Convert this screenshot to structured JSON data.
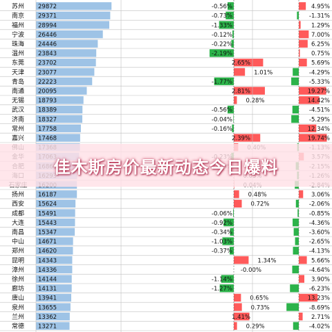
{
  "banner": {
    "title": "佳木斯房价最新动态今日爆料"
  },
  "colors": {
    "bar_blue": "#9ec3e6",
    "pos_red": "#ff5a5a",
    "neg_green": "#2cb34a",
    "grid": "#bfbfbf"
  },
  "chart_data": {
    "type": "table",
    "columns": [
      "city",
      "price",
      "mom_change",
      "yoy_change"
    ],
    "rows": [
      {
        "city": "苏州",
        "price": "29872",
        "mom": "-0.56%",
        "yoy": "4.95%"
      },
      {
        "city": "南京",
        "price": "29371",
        "mom": "-0.73%",
        "yoy": "-1.31%"
      },
      {
        "city": "福州",
        "price": "28994",
        "mom": "-1.33%",
        "yoy": "1.29%"
      },
      {
        "city": "宁波",
        "price": "26446",
        "mom": "-0.12%",
        "yoy": "7.00%"
      },
      {
        "city": "珠海",
        "price": "24446",
        "mom": "-0.22%",
        "yoy": "6.25%"
      },
      {
        "city": "温州",
        "price": "23843",
        "mom": "-2.19%",
        "yoy": "0.75%"
      },
      {
        "city": "东莞",
        "price": "23702",
        "mom": "2.65%",
        "yoy": "5.69%"
      },
      {
        "city": "天津",
        "price": "23077",
        "mom": "1.01%",
        "yoy": "-4.29%"
      },
      {
        "city": "青岛",
        "price": "22223",
        "mom": "-1.77%",
        "yoy": "-5.33%"
      },
      {
        "city": "南通",
        "price": "20095",
        "mom": "2.81%",
        "yoy": "19.27%"
      },
      {
        "city": "无锡",
        "price": "18793",
        "mom": "0.28%",
        "yoy": "14.42%"
      },
      {
        "city": "武汉",
        "price": "18389",
        "mom": "-0.56%",
        "yoy": "-4.51%"
      },
      {
        "city": "济南",
        "price": "18327",
        "mom": "-0.04%",
        "yoy": "-5.29%"
      },
      {
        "city": "常州",
        "price": "17758",
        "mom": "-0.16%",
        "yoy": "12.34%"
      },
      {
        "city": "嘉兴",
        "price": "17468",
        "mom": "2.39%",
        "yoy": "19.74%"
      },
      {
        "city": "佛山",
        "price": "17368",
        "mom": "0.40%",
        "yoy": "-1.13%"
      },
      {
        "city": "金华",
        "price": "17063",
        "mom": "-0.23%",
        "yoy": "3.57%"
      },
      {
        "city": "合肥",
        "price": "16860",
        "mom": "-0.03%",
        "yoy": "-2.15%"
      },
      {
        "city": "海口",
        "price": "16293",
        "mom": "0.03%",
        "yoy": "-1.26%"
      },
      {
        "city": "石家庄",
        "price": "16200",
        "mom": "0.04%",
        "yoy": "-2.84%"
      },
      {
        "city": "扬州",
        "price": "16187",
        "mom": "0.48%",
        "yoy": "3.06%"
      },
      {
        "city": "西安",
        "price": "15624",
        "mom": "0.72%",
        "yoy": "-2.06%"
      },
      {
        "city": "成都",
        "price": "15491",
        "mom": "-0.06%",
        "yoy": "-0.85%"
      },
      {
        "city": "大连",
        "price": "15443",
        "mom": "-0.92%",
        "yoy": "-4.36%"
      },
      {
        "city": "南昌",
        "price": "15347",
        "mom": "-0.34%",
        "yoy": "-3.60%"
      },
      {
        "city": "中山",
        "price": "14671",
        "mom": "-1.03%",
        "yoy": "-2.65%"
      },
      {
        "city": "郑州",
        "price": "14620",
        "mom": "-0.37%",
        "yoy": "-4.13%"
      },
      {
        "city": "昆明",
        "price": "14343",
        "mom": "1.34%",
        "yoy": "5.66%"
      },
      {
        "city": "漳州",
        "price": "14336",
        "mom": "-0.00%",
        "yoy": "-4.64%"
      },
      {
        "city": "徐州",
        "price": "14144",
        "mom": "-1.14%",
        "yoy": "3.90%"
      },
      {
        "city": "廊坊",
        "price": "14131",
        "mom": "-1.27%",
        "yoy": "-6.23%"
      },
      {
        "city": "唐山",
        "price": "13941",
        "mom": "0.65%",
        "yoy": "13.23%"
      },
      {
        "city": "泉州",
        "price": "13655",
        "mom": "0.73%",
        "yoy": "-8.69%"
      },
      {
        "city": "兰州",
        "price": "13362",
        "mom": "1.41%",
        "yoy": "2.71%"
      },
      {
        "city": "常德",
        "price": "13271",
        "mom": "0.29%",
        "yoy": "-4.02%"
      }
    ]
  }
}
